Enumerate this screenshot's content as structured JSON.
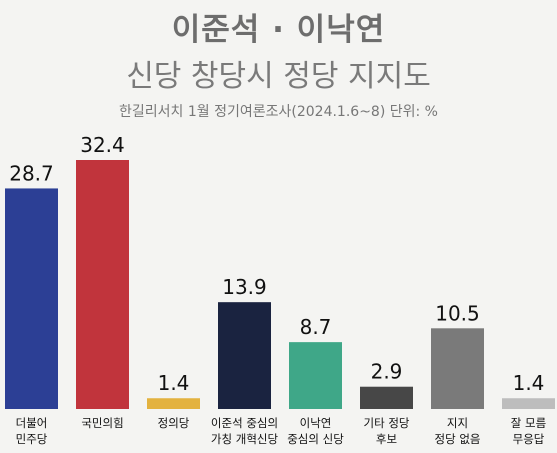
{
  "header": {
    "title": "이준석 · 이낙연",
    "subtitle": "신당 창당시 정당 지지도",
    "note": "한길리서치 1월 정기여론조사(2024.1.6~8) 단위: %"
  },
  "chart_data": {
    "type": "bar",
    "title": "이준석 · 이낙연 신당 창당시 정당 지지도",
    "categories": [
      [
        "더불어",
        "민주당"
      ],
      [
        "국민의힘"
      ],
      [
        "정의당"
      ],
      [
        "이준석 중심의",
        "가칭 개혁신당"
      ],
      [
        "이낙연",
        "중심의 신당"
      ],
      [
        "기타 정당",
        "후보"
      ],
      [
        "지지",
        "정당 없음"
      ],
      [
        "잘 모름",
        "무응답"
      ]
    ],
    "values": [
      28.7,
      32.4,
      1.4,
      13.9,
      8.7,
      2.9,
      10.5,
      1.4
    ],
    "value_labels": [
      "28.7",
      "32.4",
      "1.4",
      "13.9",
      "8.7",
      "2.9",
      "10.5",
      "1.4"
    ],
    "colors": [
      "#2c3f95",
      "#c1343c",
      "#e3b23f",
      "#1a2340",
      "#3fa788",
      "#474747",
      "#7a7a7a",
      "#bdbdbd"
    ],
    "ylim": [
      0,
      32.4
    ],
    "grid": false,
    "legend": "none"
  }
}
